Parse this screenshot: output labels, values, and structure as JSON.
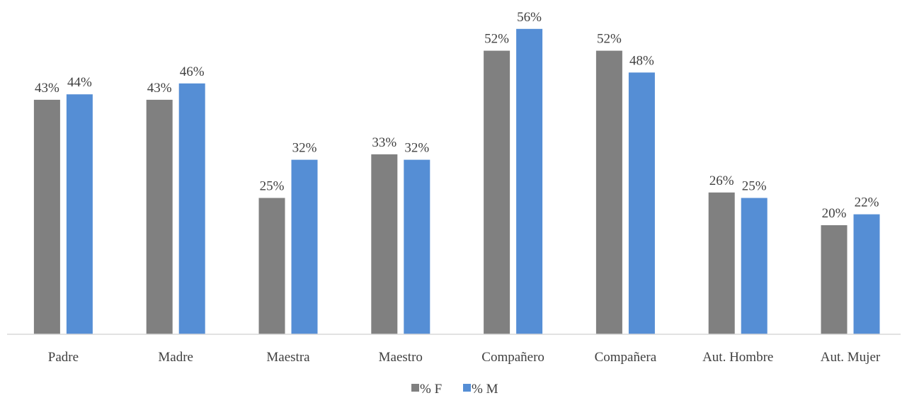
{
  "chart_data": {
    "type": "bar",
    "categories": [
      "Padre",
      "Madre",
      "Maestra",
      "Maestro",
      "Compañero",
      "Compañera",
      "Aut. Hombre",
      "Aut. Mujer"
    ],
    "series": [
      {
        "name": "% F",
        "color": "#808080",
        "values": [
          43,
          43,
          25,
          33,
          52,
          52,
          26,
          20
        ],
        "labels": [
          "43%",
          "43%",
          "25%",
          "33%",
          "52%",
          "52%",
          "26%",
          "20%"
        ]
      },
      {
        "name": "% M",
        "color": "#558ED5",
        "values": [
          44,
          46,
          32,
          32,
          56,
          48,
          25,
          22
        ],
        "labels": [
          "44%",
          "46%",
          "32%",
          "32%",
          "56%",
          "48%",
          "25%",
          "22%"
        ]
      }
    ],
    "ylim": [
      0,
      60
    ],
    "grid": false,
    "legend": "bottom-center",
    "title": "",
    "xlabel": "",
    "ylabel": ""
  }
}
